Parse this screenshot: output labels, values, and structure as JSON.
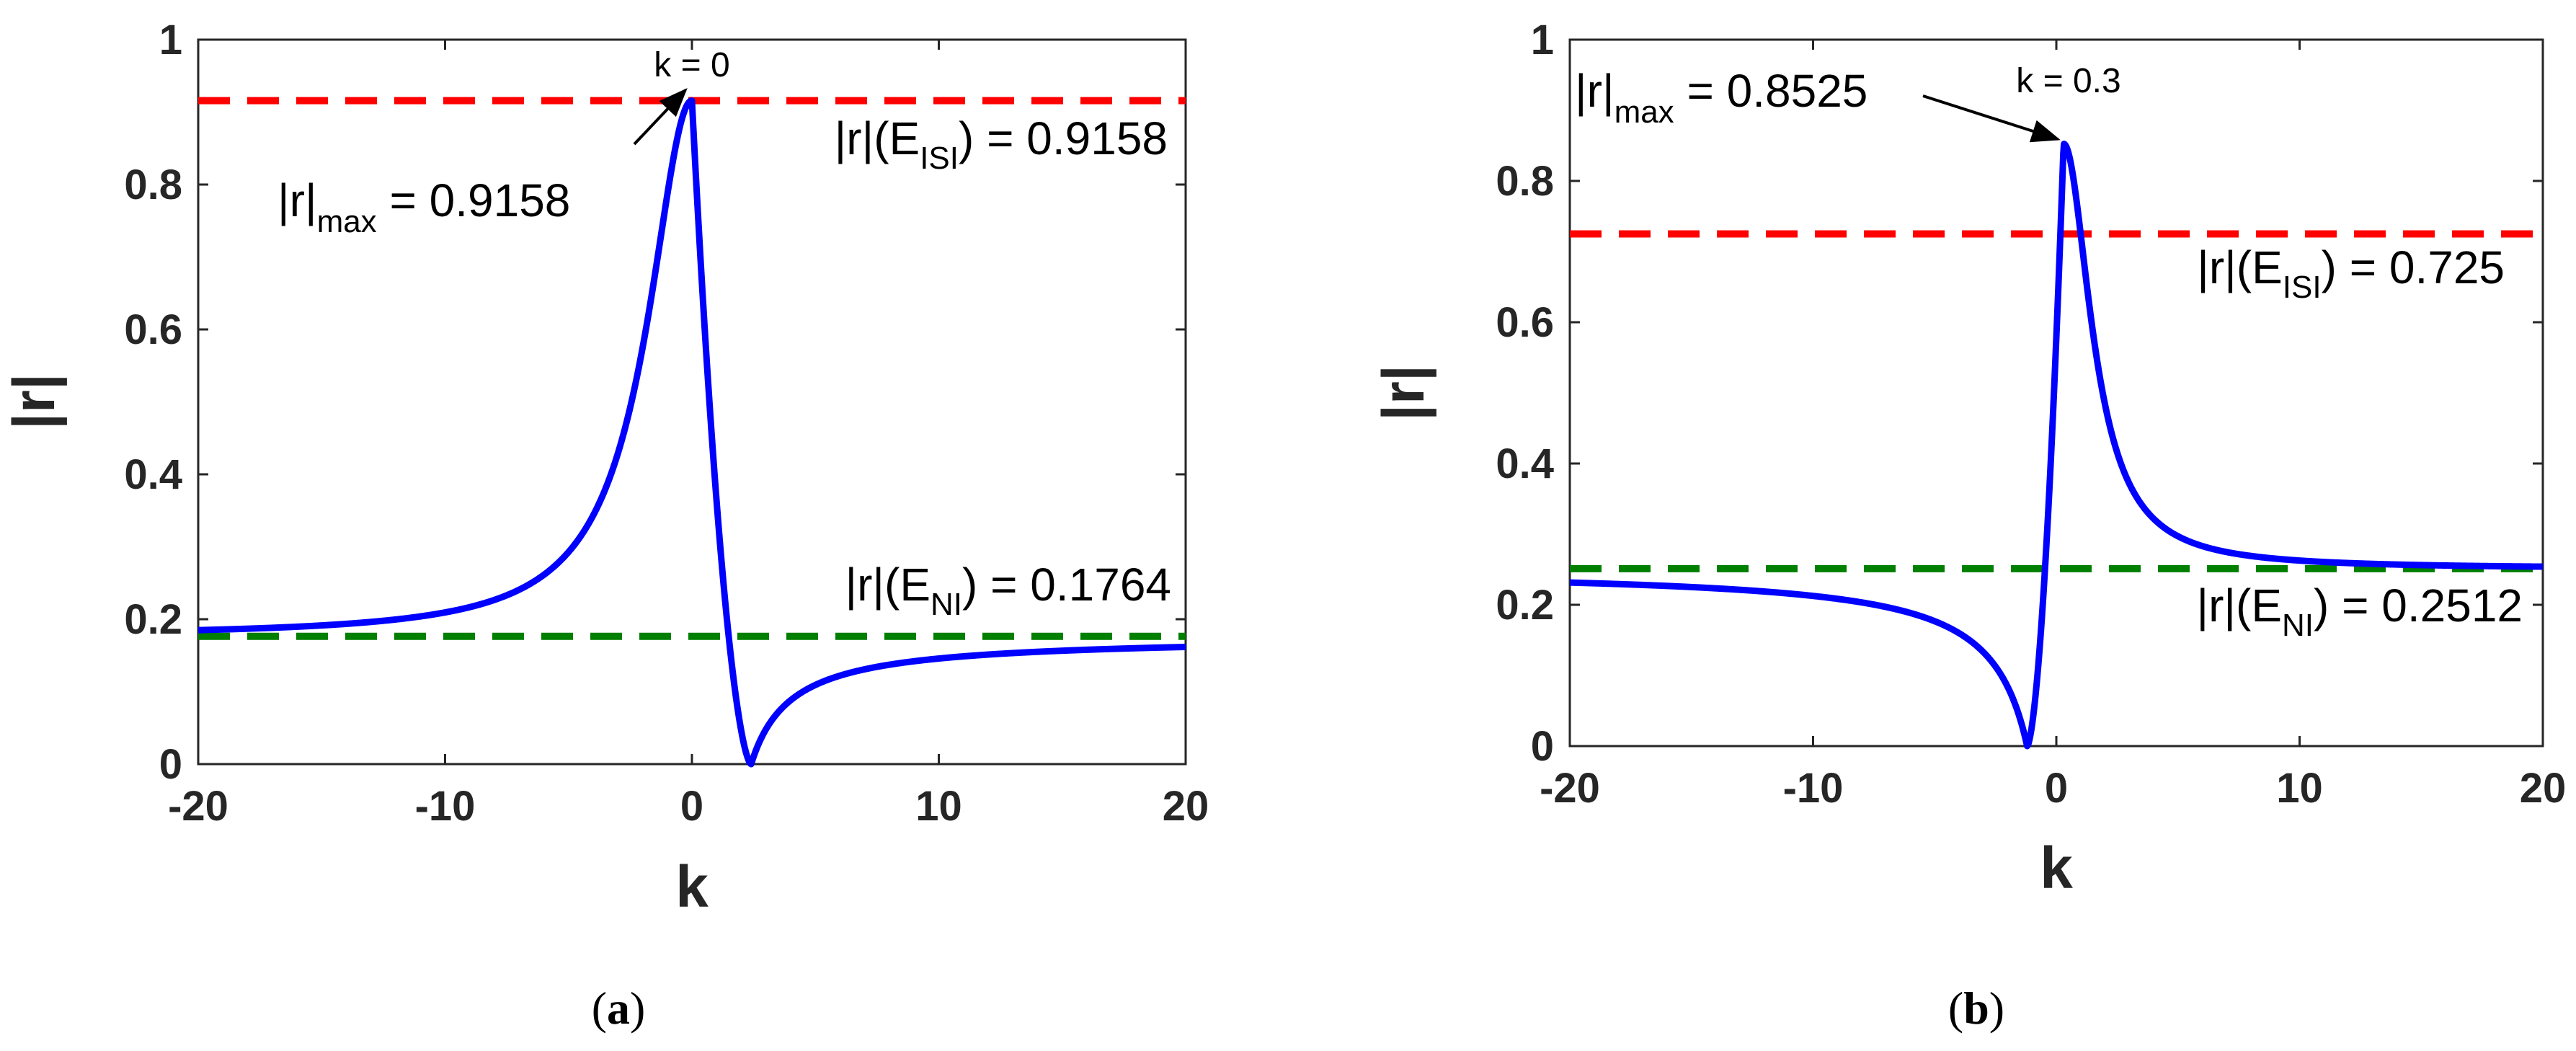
{
  "chart_data": [
    {
      "type": "line",
      "panel": "a",
      "caption": {
        "open": "(",
        "letter": "a",
        "close": ")"
      },
      "xlabel": "k",
      "ylabel": "|r|",
      "xlim": [
        -20,
        20
      ],
      "ylim": [
        0,
        1
      ],
      "xticks": [
        -20,
        -10,
        0,
        10,
        20
      ],
      "yticks": [
        0,
        0.2,
        0.4,
        0.6,
        0.8,
        1
      ],
      "xtick_labels": [
        "-20",
        "-10",
        "0",
        "10",
        "20"
      ],
      "ytick_labels": [
        "0",
        "0.2",
        "0.4",
        "0.6",
        "0.8",
        "1"
      ],
      "curve": {
        "color": "#0000ff",
        "x0": 2.4,
        "peak_k": 0,
        "peak": 0.9158,
        "left_asym": 0.1764,
        "right_asym": 0.1764
      },
      "reference_lines": [
        {
          "name": "ISI",
          "y": 0.9158,
          "color": "#ff0000",
          "style": "dashed"
        },
        {
          "name": "NI",
          "y": 0.1764,
          "color": "#007f00",
          "style": "dashed"
        }
      ],
      "annotations": {
        "peak_label": "k = 0",
        "max_main": "|r|",
        "max_sub": "max",
        "max_value": " = 0.9158",
        "isi_main": "|r|(E",
        "isi_sub": "ISI",
        "isi_value": ") = 0.9158",
        "ni_main": "|r|(E",
        "ni_sub": "NI",
        "ni_value": ") = 0.1764"
      }
    },
    {
      "type": "line",
      "panel": "b",
      "caption": {
        "open": "(",
        "letter": "b",
        "close": ")"
      },
      "xlabel": "k",
      "ylabel": "|r|",
      "xlim": [
        -20,
        20
      ],
      "ylim": [
        0,
        1
      ],
      "xticks": [
        -20,
        -10,
        0,
        10,
        20
      ],
      "yticks": [
        0,
        0.2,
        0.4,
        0.6,
        0.8,
        1
      ],
      "xtick_labels": [
        "-20",
        "-10",
        "0",
        "10",
        "20"
      ],
      "ytick_labels": [
        "0",
        "0.2",
        "0.4",
        "0.6",
        "0.8",
        "1"
      ],
      "curve": {
        "color": "#0000ff",
        "x0": -1.2,
        "peak_k": 0.3,
        "peak": 0.8525,
        "left_asym": 0.2512,
        "right_asym": 0.2512
      },
      "reference_lines": [
        {
          "name": "ISI",
          "y": 0.725,
          "color": "#ff0000",
          "style": "dashed"
        },
        {
          "name": "NI",
          "y": 0.2512,
          "color": "#007f00",
          "style": "dashed"
        }
      ],
      "annotations": {
        "peak_label": "k = 0.3",
        "max_main": "|r|",
        "max_sub": "max",
        "max_value": " = 0.8525",
        "isi_main": "|r|(E",
        "isi_sub": "ISI",
        "isi_value": ") = 0.725",
        "ni_main": "|r|(E",
        "ni_sub": "NI",
        "ni_value": ") = 0.2512"
      }
    }
  ]
}
